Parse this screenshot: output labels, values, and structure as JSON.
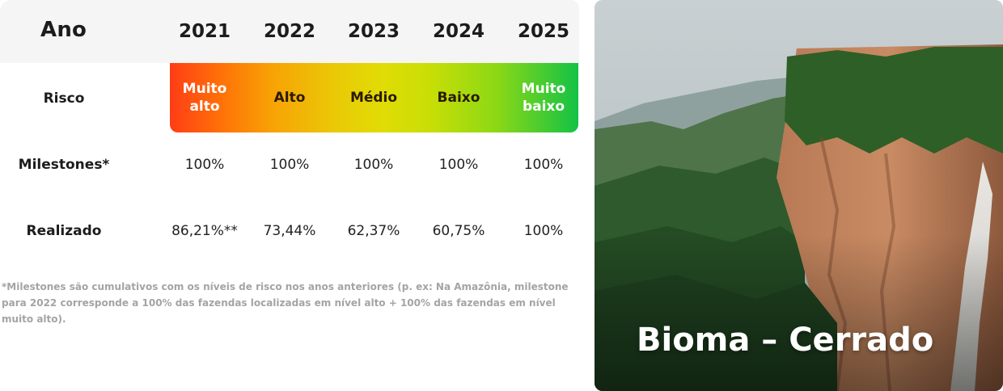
{
  "table": {
    "header_label": "Ano",
    "years": [
      "2021",
      "2022",
      "2023",
      "2024",
      "2025"
    ],
    "rows": {
      "risk": {
        "label": "Risco",
        "values": [
          "Muito alto",
          "Alto",
          "Médio",
          "Baixo",
          "Muito baixo"
        ]
      },
      "milestones": {
        "label": "Milestones*",
        "values": [
          "100%",
          "100%",
          "100%",
          "100%",
          "100%"
        ]
      },
      "achieved": {
        "label": "Realizado",
        "values": [
          "86,21%**",
          "73,44%",
          "62,37%",
          "60,75%",
          "100%"
        ]
      }
    },
    "risk_gradient_colors": [
      "#ff3d16",
      "#f8a205",
      "#e1dc05",
      "#8cd815",
      "#13c246"
    ]
  },
  "footnote": "*Milestones são cumulativos com os níveis de risco nos anos anteriores (p. ex: Na Amazônia, milestone para 2022 corresponde a 100% das fazendas localizadas em nível alto + 100% das fazendas em nível muito alto).",
  "photo": {
    "title": "Bioma – Cerrado",
    "image_description": "aerial view of forested cliffs with a waterfall"
  }
}
